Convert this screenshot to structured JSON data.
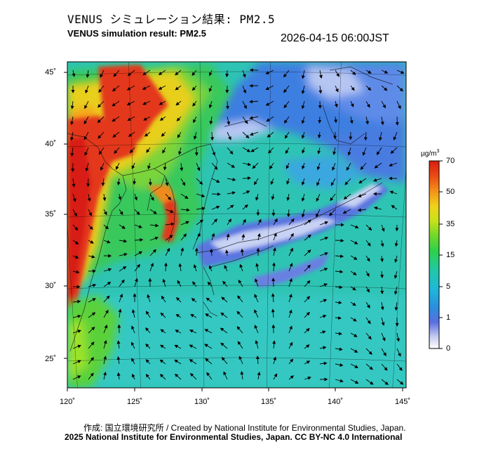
{
  "header": {
    "title_jp": "VENUS シミュレーション結果: PM2.5",
    "title_en": "VENUS simulation result: PM2.5",
    "timestamp": "2026-04-15 06:00JST"
  },
  "map": {
    "lat_labels": [
      "45˚",
      "40˚",
      "35˚",
      "30˚",
      "25˚"
    ],
    "lon_labels": [
      "120˚",
      "125˚",
      "130˚",
      "135˚",
      "140˚",
      "145˚"
    ],
    "lon_range": [
      120,
      145
    ],
    "lat_range": [
      23,
      46
    ],
    "field": "PM2.5 concentration with wind vectors",
    "colors": {
      "sea_background": "#2fc6b0",
      "high_pollution": "#e8321e",
      "clean_air": "#b6c6f2",
      "wind_arrow": "#000000"
    }
  },
  "colorbar": {
    "unit_main": "µg/m",
    "unit_sup": "3",
    "ticks": [
      "70",
      "50",
      "35",
      "15",
      "5",
      "1",
      "0"
    ],
    "colors": [
      "#ffffff",
      "#3d5bd6",
      "#1fa4e0",
      "#22c8a6",
      "#2dd14a",
      "#9ee21a",
      "#f0e21a",
      "#f5a015",
      "#ea4a14",
      "#d81e12"
    ]
  },
  "footer": {
    "credit_jp": "作成: 国立環境研究所 / Created by National Institute for Environmental Studies, Japan.",
    "copyright": "2025 National Institute for Environmental Studies, Japan. CC BY-NC 4.0 International"
  }
}
